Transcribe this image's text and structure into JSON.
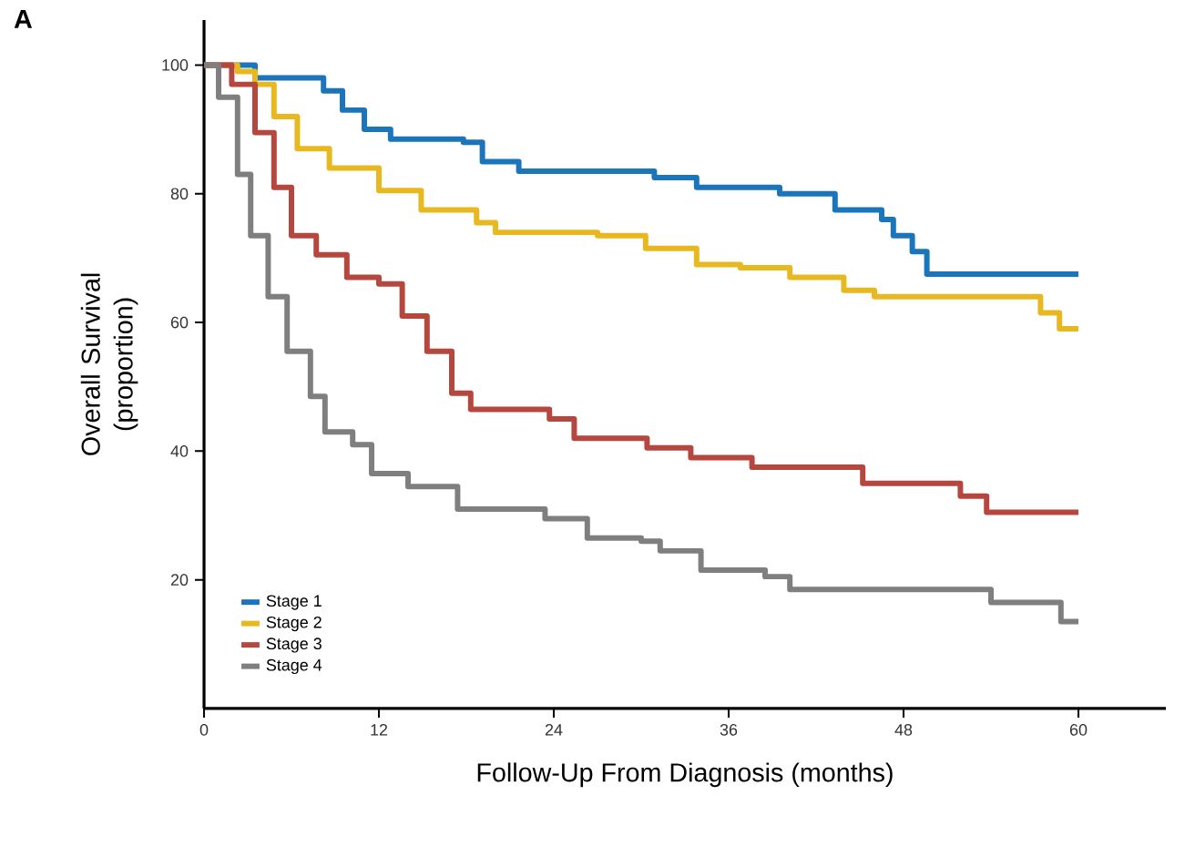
{
  "chart_data": {
    "type": "step",
    "xlabel": "Follow-Up From Diagnosis (months)",
    "ylabel": "Overall Survival (proportion)",
    "annotations": [
      "A"
    ],
    "xlim": [
      0,
      66
    ],
    "ylim": [
      0,
      107
    ],
    "xticks": [
      0,
      12,
      24,
      36,
      48,
      60
    ],
    "yticks": [
      20,
      40,
      60,
      80,
      100
    ],
    "legend": "bottom left",
    "grid": false,
    "line_style": "solid",
    "series": [
      {
        "name": "Stage 1",
        "color": "#1b75bb",
        "x": [
          0,
          3.5,
          8.2,
          9.5,
          11,
          12.8,
          17.8,
          19.1,
          21.6,
          30.9,
          33.8,
          39.5,
          43.3,
          46.5,
          47.3,
          48.6,
          49.6,
          60
        ],
        "values": [
          100,
          98,
          96,
          93,
          90,
          88.5,
          88,
          85,
          83.5,
          82.5,
          81,
          80,
          77.5,
          76,
          73.5,
          71,
          67.5,
          67.5
        ]
      },
      {
        "name": "Stage 2",
        "color": "#e8b820",
        "x": [
          0,
          2.3,
          3.5,
          4.8,
          6.4,
          8.6,
          12,
          14.9,
          18.7,
          20,
          27,
          30.3,
          33.8,
          36.8,
          40.2,
          43.9,
          46,
          57.4,
          58.7,
          60
        ],
        "values": [
          100,
          99,
          97,
          92,
          87,
          84,
          80.5,
          77.5,
          75.5,
          74,
          73.5,
          71.5,
          69,
          68.5,
          67,
          65,
          64,
          61.5,
          59,
          59
        ]
      },
      {
        "name": "Stage 3",
        "color": "#b5473f",
        "x": [
          0,
          1.9,
          3.5,
          4.8,
          6,
          7.7,
          9.8,
          12,
          13.6,
          15.3,
          17,
          18.3,
          23.7,
          25.4,
          30.4,
          33.4,
          37.6,
          45.2,
          51.9,
          53.7,
          60
        ],
        "values": [
          100,
          97,
          89.5,
          81,
          73.5,
          70.5,
          67,
          66,
          61,
          55.5,
          49,
          46.5,
          45,
          42,
          40.5,
          39,
          37.5,
          35,
          33,
          30.5,
          30.5
        ]
      },
      {
        "name": "Stage 4",
        "color": "#7f7f7f",
        "x": [
          0,
          1,
          2.3,
          3.2,
          4.4,
          5.7,
          7.3,
          8.3,
          10.2,
          11.5,
          14,
          17.4,
          23.4,
          26.3,
          30,
          31.3,
          34.1,
          38.5,
          40.2,
          54,
          58.8,
          60
        ],
        "values": [
          100,
          95,
          83,
          73.5,
          64,
          55.5,
          48.5,
          43,
          41,
          36.5,
          34.5,
          31,
          29.5,
          26.5,
          26,
          24.5,
          21.5,
          20.5,
          18.5,
          16.5,
          13.5,
          13.5
        ]
      }
    ]
  }
}
